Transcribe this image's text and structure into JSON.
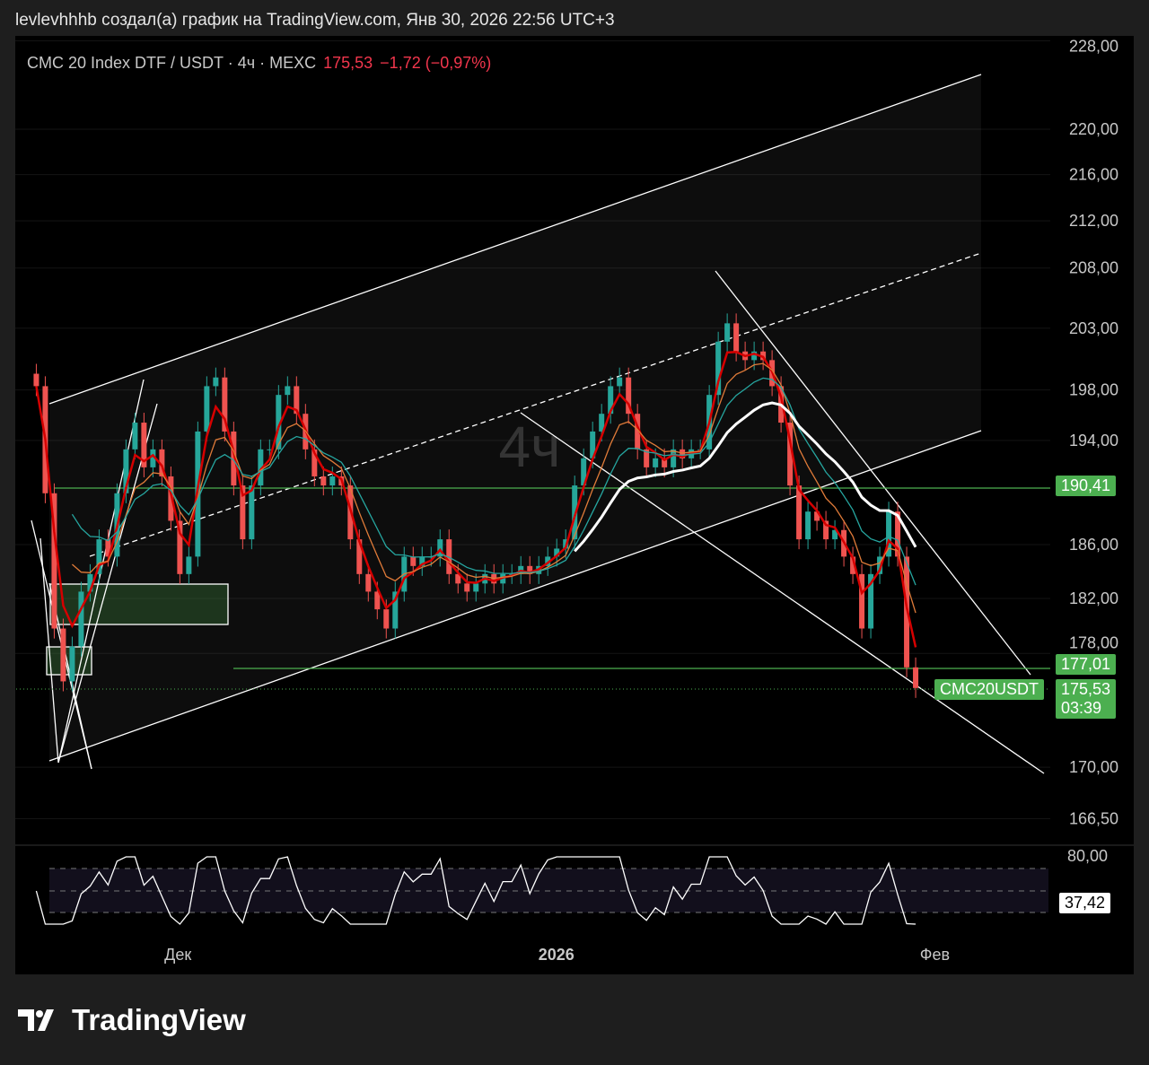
{
  "caption": "levlevhhhb создал(а) график на TradingView.com, Янв 30, 2026 22:56 UTC+3",
  "legend": {
    "symbol": "CMC 20 Index DTF / USDT · 4ч · MEXC",
    "last": "175,53",
    "change": "−1,72 (−0,97%)"
  },
  "watermark": "4ч",
  "tags": {
    "level_upper": "190,41",
    "level_lower": "177,01",
    "symbol": "CMC20USDT",
    "price": "175,53",
    "countdown": "03:39",
    "rsi": "37,42"
  },
  "brand": "TradingView",
  "colors": {
    "up": "#26a69a",
    "down": "#ef5350",
    "accent": "#4caf50"
  },
  "chart_data": {
    "type": "candlestick",
    "title": "CMC 20 Index DTF / USDT · 4ч · MEXC",
    "y_scale": "log",
    "ylim": [
      164,
      230
    ],
    "y_ticks": [
      {
        "v": 228,
        "label": "228,00"
      },
      {
        "v": 220,
        "label": "220,00"
      },
      {
        "v": 216,
        "label": "216,00"
      },
      {
        "v": 212,
        "label": "212,00"
      },
      {
        "v": 208,
        "label": "208,00"
      },
      {
        "v": 203,
        "label": "203,00"
      },
      {
        "v": 198,
        "label": "198,00"
      },
      {
        "v": 194,
        "label": "194,00"
      },
      {
        "v": 186,
        "label": "186,00"
      },
      {
        "v": 182,
        "label": "182,00"
      },
      {
        "v": 178,
        "label": "178,00"
      },
      {
        "v": 170,
        "label": "170,00"
      },
      {
        "v": 166.5,
        "label": "166,50"
      }
    ],
    "x_ticks": [
      {
        "day": 12,
        "label": "Дек",
        "bold": false
      },
      {
        "day": 43,
        "label": "2026",
        "bold": true
      },
      {
        "day": 74,
        "label": "Фев",
        "bold": false
      }
    ],
    "start_day": 0.4,
    "step_days": 0.735,
    "closes": [
      198.3,
      189.9,
      179.8,
      176.0,
      178.5,
      182.5,
      183.8,
      186.4,
      185.1,
      189.9,
      193.3,
      195.4,
      191.9,
      193.3,
      191.2,
      187.8,
      183.8,
      185.1,
      194.7,
      198.3,
      199.0,
      194.7,
      190.5,
      186.4,
      190.5,
      193.3,
      193.3,
      197.6,
      198.3,
      196.1,
      193.3,
      191.2,
      190.5,
      191.2,
      190.5,
      186.4,
      183.8,
      182.5,
      181.2,
      179.8,
      182.5,
      185.1,
      184.4,
      185.1,
      185.1,
      186.4,
      183.8,
      183.1,
      182.5,
      183.1,
      183.8,
      183.1,
      183.8,
      183.8,
      184.4,
      183.8,
      184.4,
      185.1,
      185.7,
      186.4,
      190.5,
      192.6,
      194.7,
      196.1,
      198.3,
      199.0,
      196.1,
      193.3,
      191.9,
      192.6,
      191.9,
      193.3,
      192.6,
      193.3,
      193.3,
      197.6,
      201.9,
      203.4,
      201.1,
      200.4,
      201.1,
      200.4,
      198.3,
      195.4,
      190.5,
      186.4,
      188.5,
      187.8,
      186.4,
      187.1,
      185.1,
      183.8,
      179.8,
      183.8,
      185.1,
      188.5,
      185.1,
      177.0,
      175.53
    ],
    "levels": [
      190.41,
      177.01
    ],
    "last_price": 175.53,
    "rsi": {
      "levels": [
        70,
        50,
        30
      ],
      "axis_label": "80,00",
      "last": 37.42
    }
  }
}
